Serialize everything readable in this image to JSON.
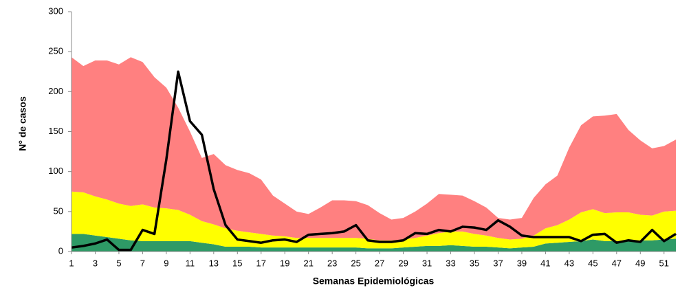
{
  "chart_data": {
    "type": "area",
    "stacked": true,
    "x_label": "Semanas Epidemiológicas",
    "y_label": "N° de casos",
    "x": [
      1,
      2,
      3,
      4,
      5,
      6,
      7,
      8,
      9,
      10,
      11,
      12,
      13,
      14,
      15,
      16,
      17,
      18,
      19,
      20,
      21,
      22,
      23,
      24,
      25,
      26,
      27,
      28,
      29,
      30,
      31,
      32,
      33,
      34,
      35,
      36,
      37,
      38,
      39,
      40,
      41,
      42,
      43,
      44,
      45,
      46,
      47,
      48,
      49,
      50,
      51,
      52
    ],
    "xlim": [
      1,
      52
    ],
    "xticks": [
      1,
      3,
      5,
      7,
      9,
      11,
      13,
      15,
      17,
      19,
      21,
      23,
      25,
      27,
      29,
      31,
      33,
      35,
      37,
      39,
      41,
      43,
      45,
      47,
      49,
      51
    ],
    "ylim": [
      0,
      300
    ],
    "yticks": [
      0,
      50,
      100,
      150,
      200,
      250,
      300
    ],
    "series": [
      {
        "kind": "area",
        "color": "#2e9a66",
        "values": [
          22,
          22,
          20,
          18,
          16,
          14,
          13,
          13,
          13,
          13,
          13,
          11,
          9,
          6,
          6,
          6,
          5,
          5,
          5,
          5,
          5,
          5,
          5,
          5,
          5,
          4,
          4,
          4,
          5,
          6,
          7,
          7,
          8,
          7,
          6,
          6,
          5,
          4,
          5,
          6,
          10,
          11,
          12,
          13,
          15,
          13,
          13,
          13,
          14,
          14,
          15,
          16
        ]
      },
      {
        "kind": "area",
        "color": "#ffff00",
        "values": [
          53,
          52,
          49,
          47,
          44,
          43,
          46,
          42,
          41,
          39,
          33,
          27,
          25,
          23,
          20,
          18,
          17,
          15,
          14,
          12,
          12,
          12,
          12,
          12,
          12,
          12,
          10,
          10,
          10,
          11,
          13,
          16,
          17,
          18,
          16,
          14,
          12,
          11,
          11,
          14,
          19,
          22,
          28,
          36,
          38,
          35,
          36,
          36,
          32,
          31,
          35,
          35
        ]
      },
      {
        "kind": "area",
        "color": "#ff8080",
        "values": [
          168,
          158,
          170,
          174,
          174,
          186,
          178,
          163,
          151,
          128,
          104,
          79,
          88,
          79,
          76,
          74,
          68,
          50,
          41,
          33,
          30,
          38,
          47,
          47,
          46,
          42,
          34,
          26,
          27,
          33,
          40,
          49,
          46,
          45,
          41,
          35,
          25,
          25,
          26,
          47,
          55,
          62,
          90,
          109,
          116,
          122,
          123,
          103,
          93,
          84,
          82,
          89
        ]
      },
      {
        "kind": "line",
        "color": "#000000",
        "values": [
          5,
          7,
          10,
          15,
          2,
          2,
          27,
          22,
          115,
          225,
          163,
          146,
          78,
          33,
          15,
          13,
          11,
          14,
          15,
          12,
          21,
          22,
          23,
          25,
          33,
          14,
          12,
          12,
          14,
          23,
          22,
          27,
          25,
          31,
          30,
          27,
          39,
          31,
          20,
          18,
          18,
          18,
          18,
          13,
          21,
          22,
          11,
          14,
          12,
          27,
          13,
          22
        ]
      }
    ]
  }
}
